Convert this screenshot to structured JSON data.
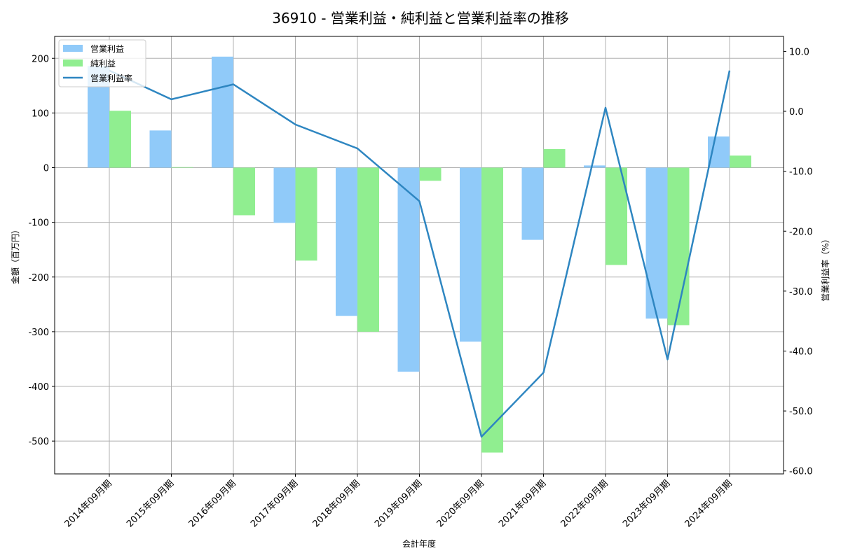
{
  "chart_data": {
    "type": "bar",
    "title": "36910 - 営業利益・純利益と営業利益率の推移",
    "xlabel": "会計年度",
    "ylabel": "金額（百万円）",
    "ylabel_right": "営業利益率（%）",
    "categories": [
      "2014年09月期",
      "2015年09月期",
      "2016年09月期",
      "2017年09月期",
      "2018年09月期",
      "2019年09月期",
      "2020年09月期",
      "2021年09月期",
      "2022年09月期",
      "2023年09月期",
      "2024年09月期"
    ],
    "series": [
      {
        "name": "営業利益",
        "type": "bar",
        "axis": "left",
        "color": "#90caf9",
        "values": [
          186,
          68,
          203,
          -101,
          -271,
          -373,
          -318,
          -132,
          4,
          -276,
          57
        ]
      },
      {
        "name": "純利益",
        "type": "bar",
        "axis": "left",
        "color": "#90ee90",
        "values": [
          104,
          1,
          -87,
          -170,
          -300,
          -24,
          -521,
          34,
          -178,
          -288,
          22
        ]
      },
      {
        "name": "営業利益率",
        "type": "line",
        "axis": "right",
        "color": "#2e86c1",
        "values": [
          6.8,
          2.0,
          4.5,
          -2.2,
          -6.2,
          -15.0,
          -54.3,
          -43.6,
          0.6,
          -41.4,
          6.8
        ]
      }
    ],
    "ylim": [
      -560,
      240
    ],
    "ylim_right": [
      -60.5,
      12.5
    ],
    "yticks": [
      200,
      100,
      0,
      -100,
      -200,
      -300,
      -400,
      -500
    ],
    "yticks_right": [
      "10.0",
      "0.0",
      "-10.0",
      "-20.0",
      "-30.0",
      "-40.0",
      "-50.0",
      "-60.0"
    ],
    "grid": true,
    "legend_position": "upper left"
  }
}
